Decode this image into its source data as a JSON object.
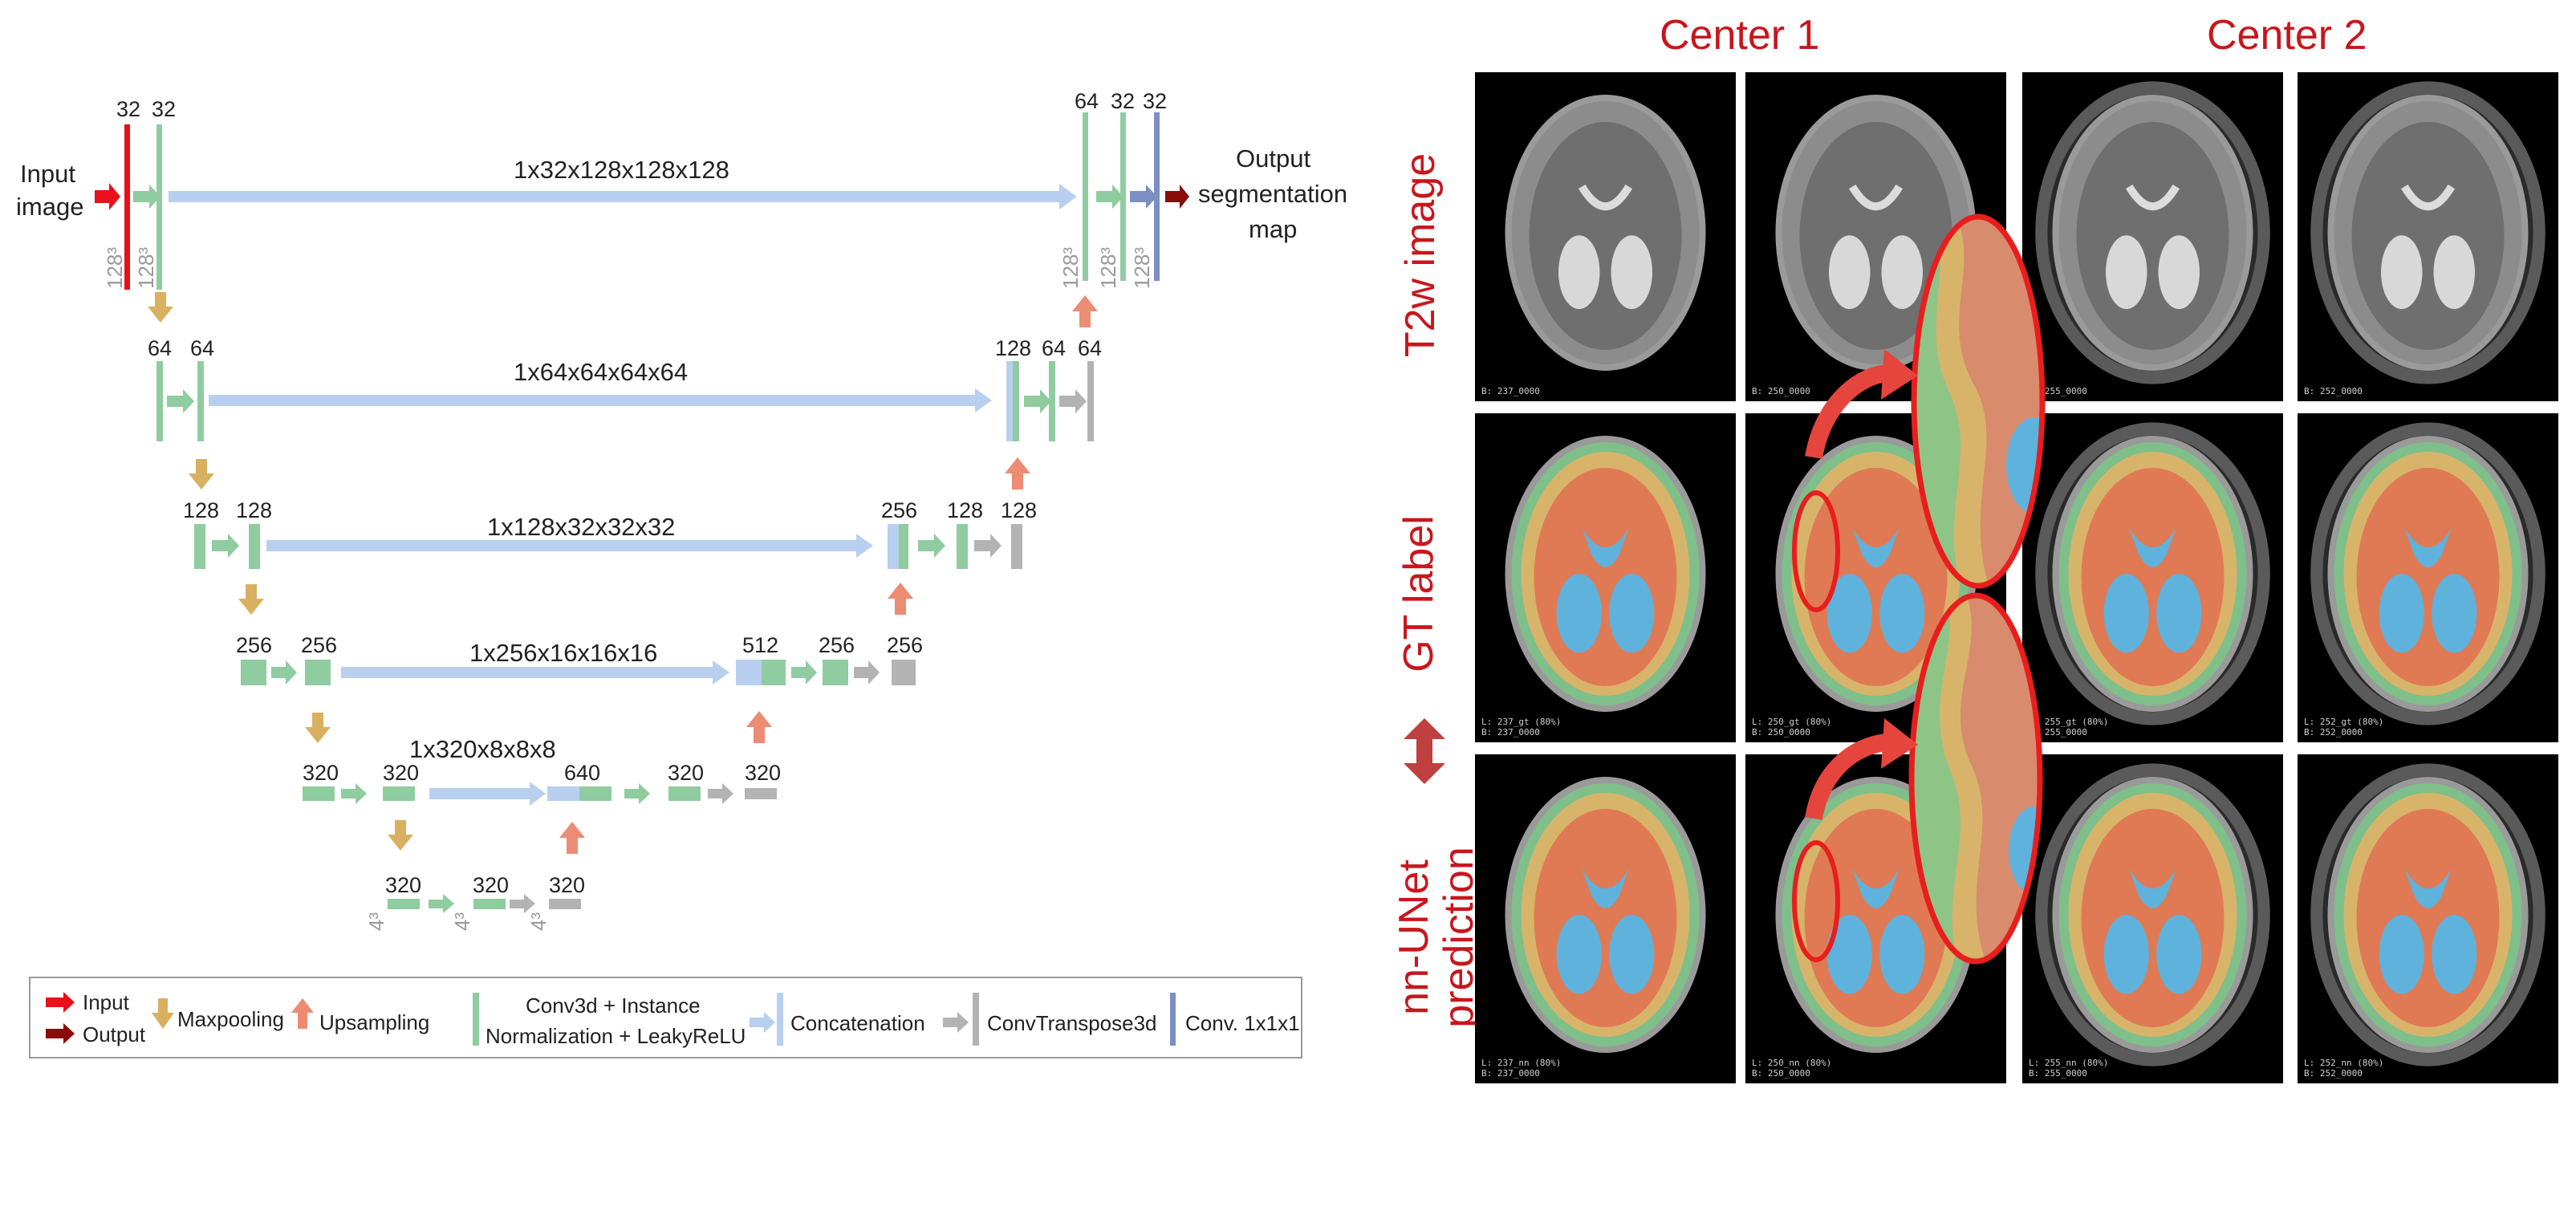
{
  "diagram": {
    "io": {
      "input": [
        "Input",
        "image"
      ],
      "output": [
        "Output",
        "segmentation",
        "map"
      ]
    },
    "level1": {
      "left": [
        "32",
        "32"
      ],
      "right": [
        "64",
        "32",
        "32"
      ],
      "skip": "1x32x128x128x128",
      "size": "128³"
    },
    "level2": {
      "left": [
        "64",
        "64"
      ],
      "right": [
        "128",
        "64",
        "64"
      ],
      "skip": "1x64x64x64x64"
    },
    "level3": {
      "left": [
        "128",
        "128"
      ],
      "right": [
        "256",
        "128",
        "128"
      ],
      "skip": "1x128x32x32x32"
    },
    "level4": {
      "left": [
        "256",
        "256"
      ],
      "right": [
        "512",
        "256",
        "256"
      ],
      "skip": "1x256x16x16x16"
    },
    "level5": {
      "left": [
        "320",
        "320"
      ],
      "right": [
        "640",
        "320",
        "320"
      ],
      "skip": "1x320x8x8x8"
    },
    "level6": {
      "nums": [
        "320",
        "320",
        "320"
      ],
      "size": "4³"
    },
    "legend": {
      "input": "Input",
      "output": "Output",
      "maxpool": "Maxpooling",
      "upsample": "Upsampling",
      "conv_1": "Conv3d + Instance",
      "conv_2": "Normalization + LeakyReLU",
      "concat": "Concatenation",
      "convt": "ConvTranspose3d",
      "conv1": "Conv. 1x1x1"
    },
    "colors": {
      "input": "#e8101a",
      "output": "#8b0a0a",
      "conv": "#8fcca0",
      "skip": "#b8cff0",
      "maxpool": "#d9b05f",
      "upsample": "#ec8c73",
      "convt": "#b3b3b3",
      "conv1": "#7b8fc4"
    }
  },
  "panel": {
    "col_headers": [
      "Center 1",
      "Center 2"
    ],
    "row_labels": [
      "T2w image",
      "GT label",
      "nn-UNet prediction"
    ],
    "captions": {
      "r1": [
        "B: 237_0000",
        "B: 250_0000",
        "B: 255_0000",
        "B: 252_0000"
      ],
      "r2": [
        [
          "L: 237_gt (80%)",
          "B: 237_0000"
        ],
        [
          "L: 250_gt (80%)",
          "B: 250_0000"
        ],
        [
          "L: 255_gt (80%)",
          "B: 255_0000"
        ],
        [
          "L: 252_gt (80%)",
          "B: 252_0000"
        ]
      ],
      "r3": [
        [
          "L: 237_nn (80%)",
          "B: 237_0000"
        ],
        [
          "L: 250_nn (80%)",
          "B: 250_0000"
        ],
        [
          "L: 255_nn (80%)",
          "B: 255_0000"
        ],
        [
          "L: 252_nn (80%)",
          "B: 252_0000"
        ]
      ]
    },
    "colors": {
      "accent": "#c8161d",
      "csf": "#e07a55",
      "ventricle": "#5fb2dc",
      "gm": "#d8b46a",
      "wm": "#7fbf8a"
    }
  }
}
